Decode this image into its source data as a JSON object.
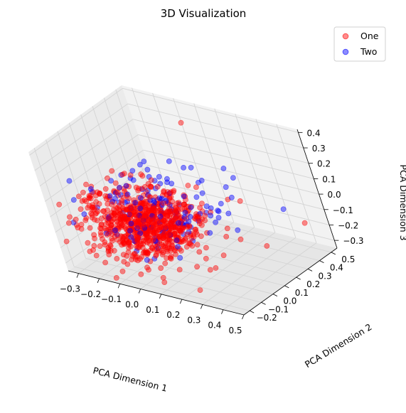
{
  "chart_data": {
    "type": "scatter",
    "projection": "3d",
    "title": "3D Visualization",
    "xlabel": "PCA Dimension 1",
    "ylabel": "PCA Dimension 2",
    "zlabel": "PCA Dimension 3",
    "xlim": [
      -0.35,
      0.5
    ],
    "ylim": [
      -0.25,
      0.55
    ],
    "zlim": [
      -0.35,
      0.42
    ],
    "x_ticks": [
      "−0.3",
      "−0.2",
      "−0.1",
      "0.0",
      "0.1",
      "0.2",
      "0.3",
      "0.4",
      "0.5"
    ],
    "y_ticks": [
      "−0.2",
      "−0.1",
      "0.0",
      "0.1",
      "0.2",
      "0.3",
      "0.4",
      "0.5"
    ],
    "z_ticks": [
      "−0.3",
      "−0.2",
      "−0.1",
      "0.0",
      "0.1",
      "0.2",
      "0.3",
      "0.4"
    ],
    "grid": true,
    "legend_position": "top-right",
    "series": [
      {
        "name": "One",
        "color": "#ff0000",
        "alpha": 0.45,
        "note_count_estimated": 820,
        "distribution": {
          "x_center": -0.05,
          "x_spread": 0.12,
          "y_center": 0.0,
          "y_spread": 0.12,
          "z_center": -0.08,
          "z_spread": 0.09
        },
        "points": [
          [
            0.05,
            0.35,
            0.42
          ],
          [
            -0.08,
            0.05,
            0.2
          ],
          [
            0.3,
            0.25,
            0.05
          ],
          [
            0.45,
            0.45,
            -0.15
          ],
          [
            0.4,
            0.2,
            -0.18
          ],
          [
            0.25,
            -0.05,
            -0.25
          ],
          [
            -0.3,
            -0.2,
            -0.05
          ],
          [
            0.0,
            -0.15,
            -0.28
          ],
          [
            0.1,
            -0.2,
            -0.3
          ],
          [
            0.35,
            0.1,
            -0.1
          ],
          [
            0.2,
            0.3,
            0.0
          ],
          [
            -0.2,
            0.1,
            0.05
          ]
        ]
      },
      {
        "name": "Two",
        "color": "#0000ff",
        "alpha": 0.45,
        "note_count_estimated": 140,
        "distribution": {
          "x_center": 0.0,
          "x_spread": 0.13,
          "y_center": 0.05,
          "y_spread": 0.14,
          "z_center": -0.02,
          "z_spread": 0.11
        },
        "points": [
          [
            -0.05,
            0.1,
            0.25
          ],
          [
            0.1,
            0.25,
            0.2
          ],
          [
            0.3,
            0.2,
            0.1
          ],
          [
            0.4,
            0.4,
            -0.05
          ],
          [
            -0.2,
            -0.1,
            0.15
          ],
          [
            0.2,
            0.0,
            0.05
          ],
          [
            0.05,
            -0.1,
            -0.15
          ],
          [
            -0.1,
            0.2,
            0.1
          ]
        ]
      }
    ]
  }
}
